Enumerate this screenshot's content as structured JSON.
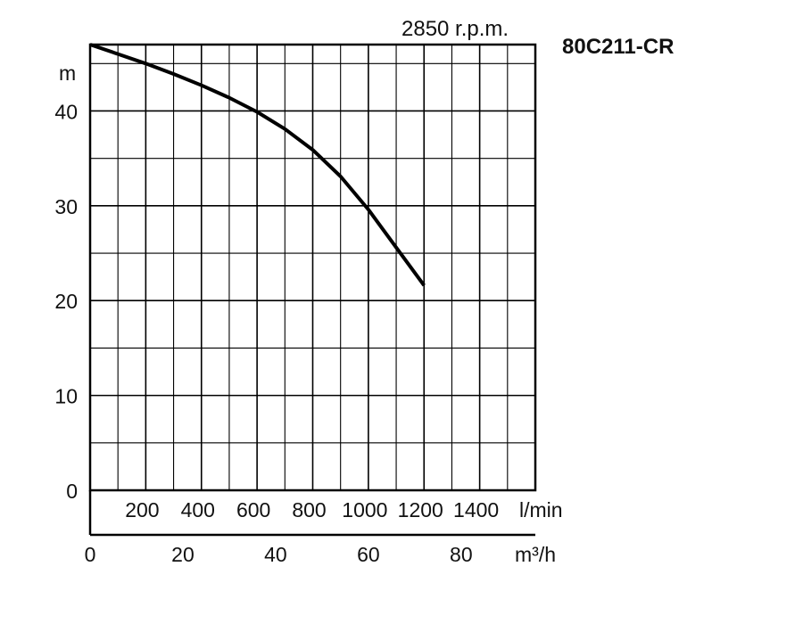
{
  "chart_data": {
    "type": "line",
    "title": "80C211-CR",
    "subtitle": "2850 r.p.m.",
    "ylabel": "m",
    "xlabel_primary": "l/min",
    "xlabel_secondary": "m³/h",
    "ylim": [
      0,
      47
    ],
    "xlim": [
      0,
      1600
    ],
    "y_ticks": [
      "0",
      "10",
      "20",
      "30",
      "40"
    ],
    "y_tick_values": [
      0,
      10,
      20,
      30,
      40
    ],
    "x_ticks_lmin": [
      "200",
      "400",
      "600",
      "800",
      "1000",
      "1200",
      "1400"
    ],
    "x_tick_values_lmin": [
      200,
      400,
      600,
      800,
      1000,
      1200,
      1400
    ],
    "x_ticks_m3h": [
      "0",
      "20",
      "40",
      "60",
      "80"
    ],
    "x_tick_values_m3h": [
      0,
      20,
      40,
      60,
      80
    ],
    "grid": true,
    "series": [
      {
        "x": [
          0,
          100,
          200,
          300,
          400,
          500,
          600,
          700,
          800,
          900,
          1000,
          1100,
          1200
        ],
        "y": [
          47.0,
          46.0,
          45.0,
          43.9,
          42.7,
          41.4,
          39.9,
          38.1,
          35.9,
          33.1,
          29.6,
          25.6,
          21.6
        ],
        "color": "#000000"
      }
    ]
  }
}
